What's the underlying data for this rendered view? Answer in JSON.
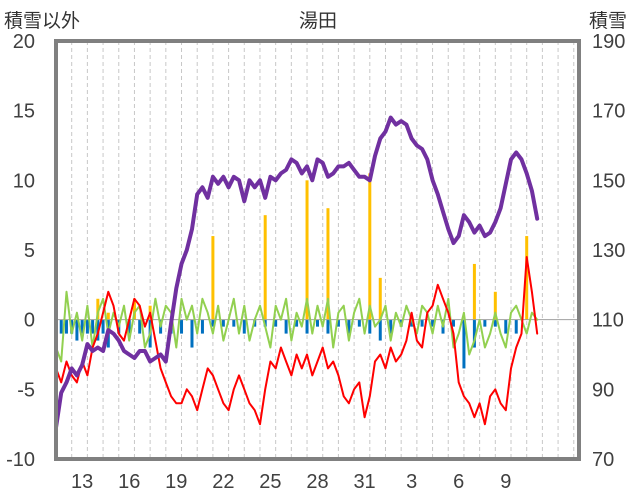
{
  "chart_data": {
    "type": "line",
    "title": "湯田",
    "ylabel_left": "積雪以外",
    "ylabel_right": "積雪",
    "x_range": [
      0,
      100
    ],
    "y_left": {
      "range": [
        -10,
        20
      ],
      "ticks": [
        "20",
        "15",
        "10",
        "5",
        "0",
        "-5",
        "-10"
      ],
      "values": [
        20,
        15,
        10,
        5,
        0,
        -5,
        -10
      ]
    },
    "y_right": {
      "range": [
        70,
        190
      ],
      "ticks": [
        "190",
        "170",
        "150",
        "130",
        "110",
        "90",
        "70"
      ],
      "values": [
        190,
        170,
        150,
        130,
        110,
        90,
        70
      ]
    },
    "x_ticks": [
      {
        "label": "13",
        "x": 5
      },
      {
        "label": "16",
        "x": 14
      },
      {
        "label": "19",
        "x": 23
      },
      {
        "label": "22",
        "x": 32
      },
      {
        "label": "25",
        "x": 41
      },
      {
        "label": "28",
        "x": 50
      },
      {
        "label": "31",
        "x": 59
      },
      {
        "label": "3",
        "x": 68
      },
      {
        "label": "6",
        "x": 77
      },
      {
        "label": "9",
        "x": 86
      }
    ],
    "grid_minor_vertical": true,
    "colors": {
      "snow_depth": "#7030a0",
      "temperature": "#ff0000",
      "snow_change": "#92d050",
      "precip_bar": "#ffc000",
      "decrease_bar": "#0070c0",
      "frame": "#808080",
      "grid": "#c8c8c8"
    },
    "series": [
      {
        "key": "snow_depth",
        "axis": "right",
        "kind": "line",
        "x": [
          0,
          1,
          2,
          3,
          4,
          5,
          6,
          7,
          8,
          9,
          10,
          11,
          12,
          13,
          14,
          15,
          16,
          17,
          18,
          19,
          20,
          21,
          22,
          23,
          24,
          25,
          26,
          27,
          28,
          29,
          30,
          31,
          32,
          33,
          34,
          35,
          36,
          37,
          38,
          39,
          40,
          41,
          42,
          43,
          44,
          45,
          46,
          47,
          48,
          49,
          50,
          51,
          52,
          53,
          54,
          55,
          56,
          57,
          58,
          59,
          60,
          61,
          62,
          63,
          64,
          65,
          66,
          67,
          68,
          69,
          70,
          71,
          72,
          73,
          74,
          75,
          76,
          77,
          78,
          79,
          80,
          81,
          82,
          83,
          84,
          85,
          86,
          87,
          88,
          89,
          90,
          91,
          92
        ],
        "y": [
          79,
          89,
          92,
          96,
          94,
          97,
          103,
          101,
          102,
          101,
          107,
          106,
          104,
          101,
          100,
          99,
          101,
          101,
          98,
          99,
          100,
          98,
          109,
          119,
          126,
          130,
          136,
          146,
          148,
          145,
          151,
          149,
          151,
          148,
          151,
          150,
          144,
          150,
          148,
          150,
          145,
          151,
          150,
          152,
          153,
          156,
          155,
          152,
          154,
          150,
          156,
          155,
          151,
          152,
          154,
          154,
          155,
          153,
          151,
          151,
          150,
          157,
          162,
          164,
          168,
          166,
          167,
          166,
          162,
          160,
          159,
          156,
          150,
          146,
          141,
          136,
          132,
          134,
          140,
          138,
          135,
          137,
          134,
          135,
          138,
          142,
          149,
          156,
          158,
          156,
          152,
          147,
          139
        ]
      },
      {
        "key": "temperature",
        "axis": "left",
        "kind": "line",
        "x": [
          0,
          1,
          2,
          3,
          4,
          5,
          6,
          7,
          8,
          9,
          10,
          11,
          12,
          13,
          14,
          15,
          16,
          17,
          18,
          19,
          20,
          21,
          22,
          23,
          24,
          25,
          26,
          27,
          28,
          29,
          30,
          31,
          32,
          33,
          34,
          35,
          36,
          37,
          38,
          39,
          40,
          41,
          42,
          43,
          44,
          45,
          46,
          47,
          48,
          49,
          50,
          51,
          52,
          53,
          54,
          55,
          56,
          57,
          58,
          59,
          60,
          61,
          62,
          63,
          64,
          65,
          66,
          67,
          68,
          69,
          70,
          71,
          72,
          73,
          74,
          75,
          76,
          77,
          78,
          79,
          80,
          81,
          82,
          83,
          84,
          85,
          86,
          87,
          88,
          89,
          90,
          91,
          92
        ],
        "y": [
          -3.5,
          -4.5,
          -3,
          -4,
          -4.5,
          -3,
          -4,
          -2,
          -1,
          0.5,
          2,
          1,
          -1,
          -1.5,
          0,
          1.5,
          1,
          -0.5,
          0.5,
          -1.5,
          -3.5,
          -4.5,
          -5.5,
          -6,
          -6,
          -5,
          -5.5,
          -6.5,
          -5,
          -3.5,
          -4,
          -5,
          -6,
          -6.5,
          -5,
          -4,
          -5,
          -6,
          -6.5,
          -7.5,
          -5,
          -3,
          -3.5,
          -2,
          -3,
          -4,
          -2.5,
          -3.5,
          -2.5,
          -4,
          -3,
          -2,
          -3.5,
          -3,
          -4,
          -5.5,
          -6,
          -5,
          -4.5,
          -7,
          -5.5,
          -3,
          -2.5,
          -3.5,
          -2,
          -3,
          -2.5,
          -1.5,
          0.5,
          -1.5,
          -2,
          0.5,
          1,
          2.5,
          1.5,
          0.5,
          -1,
          -4.5,
          -5.5,
          -6,
          -7,
          -6,
          -7.5,
          -5.5,
          -5,
          -6,
          -6.5,
          -3.5,
          -2,
          -1,
          4.5,
          2,
          -1
        ]
      },
      {
        "key": "snow_change",
        "axis": "left",
        "kind": "line",
        "x": [
          0,
          1,
          2,
          3,
          4,
          5,
          6,
          7,
          8,
          9,
          10,
          11,
          12,
          13,
          14,
          15,
          16,
          17,
          18,
          19,
          20,
          21,
          22,
          23,
          24,
          25,
          26,
          27,
          28,
          29,
          30,
          31,
          32,
          33,
          34,
          35,
          36,
          37,
          38,
          39,
          40,
          41,
          42,
          43,
          44,
          45,
          46,
          47,
          48,
          49,
          50,
          51,
          52,
          53,
          54,
          55,
          56,
          57,
          58,
          59,
          60,
          61,
          62,
          63,
          64,
          65,
          66,
          67,
          68,
          69,
          70,
          71,
          72,
          73,
          74,
          75,
          76,
          77,
          78,
          79,
          80,
          81,
          82,
          83,
          84,
          85,
          86,
          87,
          88,
          89,
          90,
          91,
          92
        ],
        "y": [
          -2,
          -3,
          2,
          -1,
          0.5,
          -1.5,
          1,
          -2,
          0.5,
          1.5,
          -1,
          0.5,
          -0.5,
          1,
          -1.5,
          0.5,
          1,
          -2,
          -1,
          1.5,
          -0.5,
          1,
          0.5,
          -2,
          1.5,
          0,
          1,
          -1,
          1.5,
          0.5,
          -1,
          1,
          -1.5,
          0,
          1.5,
          -1,
          1,
          -1.5,
          0,
          1,
          -0.5,
          -2,
          1,
          0,
          1.5,
          -1.5,
          0.5,
          -0.5,
          1.5,
          -1,
          1,
          -0.5,
          1.5,
          -2,
          0.5,
          1,
          -1.5,
          0.5,
          1.5,
          -1,
          1,
          -0.5,
          0,
          1,
          -1.5,
          0.5,
          -0.5,
          1,
          0,
          -1,
          1,
          0.5,
          -1,
          1,
          -0.5,
          1.5,
          -2,
          -1,
          0.5,
          -2.5,
          -1.5,
          0,
          -2,
          -1,
          0.5,
          -1,
          -2,
          0.5,
          1,
          0,
          -1,
          0.5,
          0
        ]
      },
      {
        "key": "precip_bar",
        "axis": "left",
        "kind": "bar",
        "x": [
          8,
          10,
          15,
          18,
          30,
          40,
          48,
          52,
          60,
          62,
          80,
          84,
          90
        ],
        "y": [
          1.5,
          0.5,
          1.5,
          1,
          6,
          7.5,
          10,
          8,
          10.5,
          3,
          4,
          2,
          6
        ]
      },
      {
        "key": "decrease_bar",
        "axis": "left",
        "kind": "bar",
        "x": [
          1,
          2,
          3,
          4,
          5,
          6,
          7,
          8,
          9,
          10,
          12,
          14,
          16,
          18,
          20,
          22,
          24,
          26,
          28,
          30,
          32,
          34,
          36,
          38,
          40,
          42,
          44,
          46,
          48,
          50,
          52,
          54,
          56,
          58,
          60,
          62,
          64,
          66,
          68,
          70,
          72,
          74,
          76,
          78,
          80,
          82,
          84,
          86,
          88
        ],
        "y": [
          -1,
          -1,
          -1,
          -1.5,
          -1,
          -1,
          -1,
          -1.5,
          -1,
          -2,
          -1,
          -1,
          -1,
          -2,
          -1,
          -1,
          -1,
          -2,
          -1,
          -0.5,
          -0.5,
          -0.5,
          -1,
          -0.5,
          -0.5,
          -0.5,
          -1,
          -0.5,
          -1,
          -0.5,
          -1,
          -0.5,
          -1,
          -0.5,
          -1,
          -1.5,
          -1,
          -0.5,
          -0.5,
          -0.5,
          -0.5,
          -1,
          -0.5,
          -3.5,
          -2,
          -0.5,
          -0.5,
          -1,
          -1
        ]
      }
    ]
  }
}
